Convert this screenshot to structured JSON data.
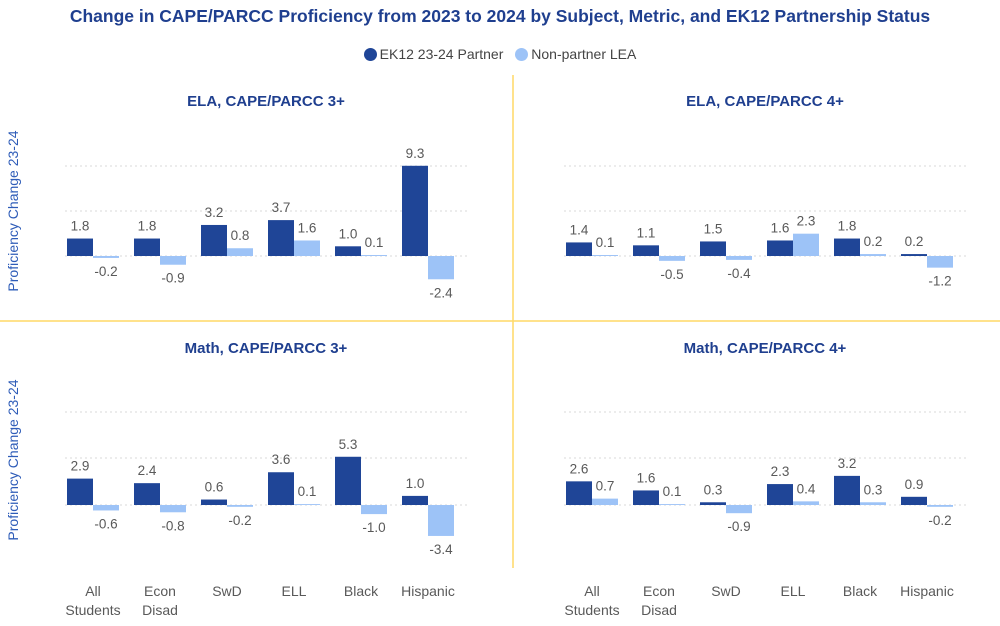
{
  "colors": {
    "partner": "#1f4597",
    "nonpartner": "#9dc3f7",
    "title": "#1f3f8f",
    "divider": "#ffd966",
    "grid": "#d9d9d9",
    "label": "#595959"
  },
  "chart_data": {
    "type": "bar",
    "title": "Change in CAPE/PARCC Proficiency from 2023 to 2024 by Subject, Metric, and EK12 Partnership Status",
    "ylabel": "Proficiency Change 23-24",
    "legend": [
      "EK12 23-24 Partner",
      "Non-partner LEA"
    ],
    "legend_position": "top-center",
    "categories": [
      [
        "All",
        "Students"
      ],
      [
        "Econ",
        "Disad"
      ],
      [
        "SwD"
      ],
      [
        "ELL"
      ],
      [
        "Black"
      ],
      [
        "Hispanic"
      ]
    ],
    "panels": [
      {
        "title": "ELA, CAPE/PARCC 3+",
        "series": [
          {
            "name": "EK12 23-24 Partner",
            "values": [
              1.8,
              1.8,
              3.2,
              3.7,
              1.0,
              9.3
            ]
          },
          {
            "name": "Non-partner LEA",
            "values": [
              -0.2,
              -0.9,
              0.8,
              1.6,
              0.1,
              -2.4
            ]
          }
        ]
      },
      {
        "title": "ELA, CAPE/PARCC 4+",
        "series": [
          {
            "name": "EK12 23-24 Partner",
            "values": [
              1.4,
              1.1,
              1.5,
              1.6,
              1.8,
              0.2
            ]
          },
          {
            "name": "Non-partner LEA",
            "values": [
              0.1,
              -0.5,
              -0.4,
              2.3,
              0.2,
              -1.2
            ]
          }
        ]
      },
      {
        "title": "Math, CAPE/PARCC 3+",
        "series": [
          {
            "name": "EK12 23-24 Partner",
            "values": [
              2.9,
              2.4,
              0.6,
              3.6,
              5.3,
              1.0
            ]
          },
          {
            "name": "Non-partner LEA",
            "values": [
              -0.6,
              -0.8,
              -0.2,
              0.1,
              -1.0,
              -3.4
            ]
          }
        ]
      },
      {
        "title": "Math, CAPE/PARCC 4+",
        "series": [
          {
            "name": "EK12 23-24 Partner",
            "values": [
              2.6,
              1.6,
              0.3,
              2.3,
              3.2,
              0.9
            ]
          },
          {
            "name": "Non-partner LEA",
            "values": [
              0.7,
              0.1,
              -0.9,
              0.4,
              0.3,
              -0.2
            ]
          }
        ]
      }
    ]
  }
}
